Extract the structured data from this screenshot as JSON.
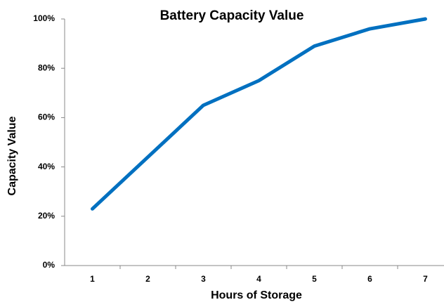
{
  "chart_data": {
    "type": "line",
    "title": "Battery Capacity Value",
    "x_label": "Hours of Storage",
    "y_label": "Capacity Value",
    "categories": [
      "1",
      "2",
      "3",
      "4",
      "5",
      "6",
      "7"
    ],
    "series": [
      {
        "name": "Capacity Value",
        "color": "#0070c0",
        "values": [
          23,
          44,
          65,
          75,
          89,
          96,
          100
        ]
      }
    ],
    "ylim": [
      0,
      100
    ],
    "yticks": [
      {
        "value": 0,
        "label": "0%"
      },
      {
        "value": 20,
        "label": "20%"
      },
      {
        "value": 40,
        "label": "40%"
      },
      {
        "value": 60,
        "label": "60%"
      },
      {
        "value": 80,
        "label": "80%"
      },
      {
        "value": 100,
        "label": "100%"
      }
    ],
    "grid": false
  }
}
